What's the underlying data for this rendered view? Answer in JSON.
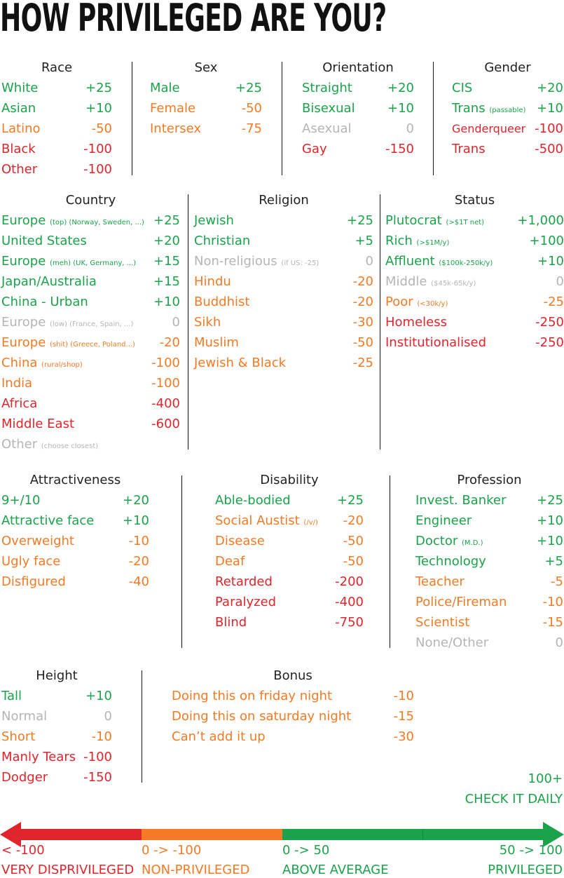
{
  "title": "HOW PRIVILEGED ARE YOU?",
  "sections": {
    "race": {
      "header": "Race",
      "items": [
        {
          "label": "White",
          "note": "",
          "value": "+25",
          "color": "#1aa34a"
        },
        {
          "label": "Asian",
          "note": "",
          "value": "+10",
          "color": "#1aa34a"
        },
        {
          "label": "Latino",
          "note": "",
          "value": "-50",
          "color": "#f47a25"
        },
        {
          "label": "Black",
          "note": "",
          "value": "-100",
          "color": "#e0252c"
        },
        {
          "label": "Other",
          "note": "",
          "value": "-100",
          "color": "#e0252c"
        }
      ]
    },
    "sex": {
      "header": "Sex",
      "items": [
        {
          "label": "Male",
          "note": "",
          "value": "+25",
          "color": "#1aa34a"
        },
        {
          "label": "Female",
          "note": "",
          "value": "-50",
          "color": "#f47a25"
        },
        {
          "label": "Intersex",
          "note": "",
          "value": "-75",
          "color": "#f47a25"
        }
      ]
    },
    "orientation": {
      "header": "Orientation",
      "items": [
        {
          "label": "Straight",
          "note": "",
          "value": "+20",
          "color": "#1aa34a"
        },
        {
          "label": "Bisexual",
          "note": "",
          "value": "+10",
          "color": "#1aa34a"
        },
        {
          "label": "Asexual",
          "note": "",
          "value": "0",
          "color": "#b5b5b5"
        },
        {
          "label": "Gay",
          "note": "",
          "value": "-150",
          "color": "#e0252c"
        }
      ]
    },
    "gender": {
      "header": "Gender",
      "items": [
        {
          "label": "CIS",
          "note": "",
          "value": "+20",
          "color": "#1aa34a"
        },
        {
          "label": "Trans",
          "note": "(passable)",
          "value": "+10",
          "color": "#1aa34a"
        },
        {
          "label": "Genderqueer",
          "note": "",
          "value": "-100",
          "color": "#e0252c",
          "small": true
        },
        {
          "label": "Trans",
          "note": "",
          "value": "-500",
          "color": "#e0252c"
        }
      ]
    },
    "country": {
      "header": "Country",
      "items": [
        {
          "label": "Europe",
          "note": "(top) (Norway, Sweden, ...)",
          "value": "+25",
          "color": "#1aa34a"
        },
        {
          "label": "United States",
          "note": "",
          "value": "+20",
          "color": "#1aa34a"
        },
        {
          "label": "Europe",
          "note": "(meh) (UK, Germany, ...)",
          "value": "+15",
          "color": "#1aa34a"
        },
        {
          "label": "Japan/Australia",
          "note": "",
          "value": "+15",
          "color": "#1aa34a"
        },
        {
          "label": "China - Urban",
          "note": "",
          "value": "+10",
          "color": "#1aa34a"
        },
        {
          "label": "Europe",
          "note": "(low) (France, Spain, ...)",
          "value": "0",
          "color": "#b5b5b5"
        },
        {
          "label": "Europe",
          "note": "(shit) (Greece, Poland...)",
          "value": "-20",
          "color": "#f47a25"
        },
        {
          "label": "China",
          "note": "(rural/shop)",
          "value": "-100",
          "color": "#f47a25"
        },
        {
          "label": "India",
          "note": "",
          "value": "-100",
          "color": "#f47a25"
        },
        {
          "label": "Africa",
          "note": "",
          "value": "-400",
          "color": "#e0252c"
        },
        {
          "label": "Middle East",
          "note": "",
          "value": "-600",
          "color": "#e0252c"
        },
        {
          "label": "Other",
          "note": "(choose closest)",
          "value": "",
          "color": "#b5b5b5"
        }
      ]
    },
    "religion": {
      "header": "Religion",
      "items": [
        {
          "label": "Jewish",
          "note": "",
          "value": "+25",
          "color": "#1aa34a"
        },
        {
          "label": "Christian",
          "note": "",
          "value": "+5",
          "color": "#1aa34a"
        },
        {
          "label": "Non-religious",
          "note": "(if US: -25)",
          "value": "0",
          "color": "#b5b5b5"
        },
        {
          "label": "Hindu",
          "note": "",
          "value": "-20",
          "color": "#f47a25"
        },
        {
          "label": "Buddhist",
          "note": "",
          "value": "-20",
          "color": "#f47a25"
        },
        {
          "label": "Sikh",
          "note": "",
          "value": "-30",
          "color": "#f47a25"
        },
        {
          "label": "Muslim",
          "note": "",
          "value": "-50",
          "color": "#f47a25"
        },
        {
          "label": "Jewish & Black",
          "note": "",
          "value": "-25",
          "color": "#f47a25"
        }
      ]
    },
    "status": {
      "header": "Status",
      "items": [
        {
          "label": "Plutocrat",
          "note": "(>$1T net)",
          "value": "+1,000",
          "color": "#1aa34a"
        },
        {
          "label": "Rich",
          "note": "(>$1M/y)",
          "value": "+100",
          "color": "#1aa34a"
        },
        {
          "label": "Affluent",
          "note": "($100k-250k/y)",
          "value": "+10",
          "color": "#1aa34a"
        },
        {
          "label": "Middle",
          "note": "($45k-65k/y)",
          "value": "0",
          "color": "#b5b5b5"
        },
        {
          "label": "Poor",
          "note": "(<30k/y)",
          "value": "-25",
          "color": "#f47a25"
        },
        {
          "label": "Homeless",
          "note": "",
          "value": "-250",
          "color": "#e0252c"
        },
        {
          "label": "Institutionalised",
          "note": "",
          "value": "-250",
          "color": "#e0252c"
        }
      ]
    },
    "attractiveness": {
      "header": "Attractiveness",
      "items": [
        {
          "label": "9+/10",
          "note": "",
          "value": "+20",
          "color": "#1aa34a"
        },
        {
          "label": "Attractive face",
          "note": "",
          "value": "+10",
          "color": "#1aa34a"
        },
        {
          "label": "Overweight",
          "note": "",
          "value": "-10",
          "color": "#f47a25"
        },
        {
          "label": "Ugly face",
          "note": "",
          "value": "-20",
          "color": "#f47a25"
        },
        {
          "label": "Disfigured",
          "note": "",
          "value": "-40",
          "color": "#f47a25"
        }
      ]
    },
    "disability": {
      "header": "Disability",
      "items": [
        {
          "label": "Able-bodied",
          "note": "",
          "value": "+25",
          "color": "#1aa34a"
        },
        {
          "label": "Social Austist",
          "note": "(/v/)",
          "value": "-20",
          "color": "#f47a25"
        },
        {
          "label": "Disease",
          "note": "",
          "value": "-50",
          "color": "#f47a25"
        },
        {
          "label": "Deaf",
          "note": "",
          "value": "-50",
          "color": "#f47a25"
        },
        {
          "label": "Retarded",
          "note": "",
          "value": "-200",
          "color": "#e0252c"
        },
        {
          "label": "Paralyzed",
          "note": "",
          "value": "-400",
          "color": "#e0252c"
        },
        {
          "label": "Blind",
          "note": "",
          "value": "-750",
          "color": "#e0252c"
        }
      ]
    },
    "profession": {
      "header": "Profession",
      "items": [
        {
          "label": "Invest. Banker",
          "note": "",
          "value": "+25",
          "color": "#1aa34a"
        },
        {
          "label": "Engineer",
          "note": "",
          "value": "+10",
          "color": "#1aa34a"
        },
        {
          "label": "Doctor",
          "note": "(M.D.)",
          "value": "+10",
          "color": "#1aa34a"
        },
        {
          "label": "Technology",
          "note": "",
          "value": "+5",
          "color": "#1aa34a"
        },
        {
          "label": "Teacher",
          "note": "",
          "value": "-5",
          "color": "#f47a25"
        },
        {
          "label": "Police/Fireman",
          "note": "",
          "value": "-10",
          "color": "#f47a25"
        },
        {
          "label": "Scientist",
          "note": "",
          "value": "-15",
          "color": "#f47a25"
        },
        {
          "label": "None/Other",
          "note": "",
          "value": "0",
          "color": "#b5b5b5"
        }
      ]
    },
    "height": {
      "header": "Height",
      "items": [
        {
          "label": "Tall",
          "note": "",
          "value": "+10",
          "color": "#1aa34a"
        },
        {
          "label": "Normal",
          "note": "",
          "value": "0",
          "color": "#b5b5b5"
        },
        {
          "label": "Short",
          "note": "",
          "value": "-10",
          "color": "#f47a25"
        },
        {
          "label": "Manly Tears",
          "note": "",
          "value": "-100",
          "color": "#e0252c"
        },
        {
          "label": "Dodger",
          "note": "",
          "value": "-150",
          "color": "#e0252c"
        }
      ]
    },
    "bonus": {
      "header": "Bonus",
      "items": [
        {
          "label": "Doing this on friday night",
          "note": "",
          "value": "-10",
          "color": "#f47a25"
        },
        {
          "label": "Doing this on saturday night",
          "note": "",
          "value": "-15",
          "color": "#f47a25"
        },
        {
          "label": "Can’t add it up",
          "note": "",
          "value": "-30",
          "color": "#f47a25"
        }
      ]
    }
  },
  "top_score": {
    "value": "100+",
    "label": "CHECK IT DAILY",
    "color": "#1aa34a"
  },
  "scale": {
    "colors": {
      "red": "#e0252c",
      "orange": "#f47a25",
      "green": "#1aa34a"
    },
    "segments": [
      {
        "range": "< -100",
        "label": "VERY DISPRIVILEGED",
        "color": "#e0252c"
      },
      {
        "range": "0 -> -100",
        "label": "NON-PRIVILEGED",
        "color": "#f47a25"
      },
      {
        "range": "0 -> 50",
        "label": "ABOVE AVERAGE",
        "color": "#1aa34a"
      },
      {
        "range": "50 -> 100",
        "label": "PRIVILEGED",
        "color": "#1aa34a"
      }
    ]
  }
}
